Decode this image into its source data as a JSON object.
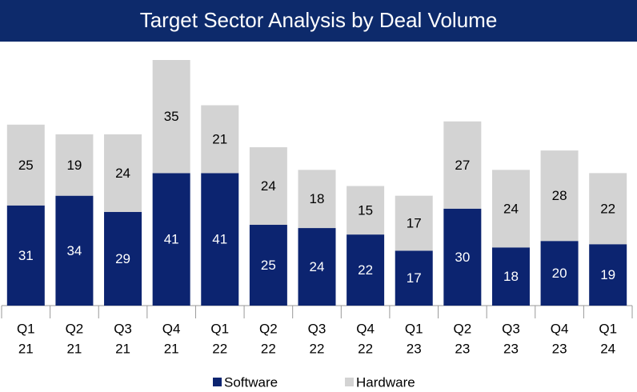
{
  "chart_data": {
    "type": "stacked_bar",
    "title": "Target Sector Analysis by Deal Volume",
    "categories": [
      [
        "Q1",
        "21"
      ],
      [
        "Q2",
        "21"
      ],
      [
        "Q3",
        "21"
      ],
      [
        "Q4",
        "21"
      ],
      [
        "Q1",
        "22"
      ],
      [
        "Q2",
        "22"
      ],
      [
        "Q3",
        "22"
      ],
      [
        "Q4",
        "22"
      ],
      [
        "Q1",
        "23"
      ],
      [
        "Q2",
        "23"
      ],
      [
        "Q3",
        "23"
      ],
      [
        "Q4",
        "23"
      ],
      [
        "Q1",
        "24"
      ]
    ],
    "series": [
      {
        "name": "Software",
        "color": "#0c2470",
        "label_color": "#ffffff",
        "values": [
          31,
          34,
          29,
          41,
          41,
          25,
          24,
          22,
          17,
          30,
          18,
          20,
          19
        ]
      },
      {
        "name": "Hardware",
        "color": "#d3d3d3",
        "label_color": "#000000",
        "values": [
          25,
          19,
          24,
          35,
          21,
          24,
          18,
          15,
          17,
          27,
          24,
          28,
          22
        ]
      }
    ],
    "ylim": [
      0,
      76
    ],
    "legend": "bottom"
  }
}
